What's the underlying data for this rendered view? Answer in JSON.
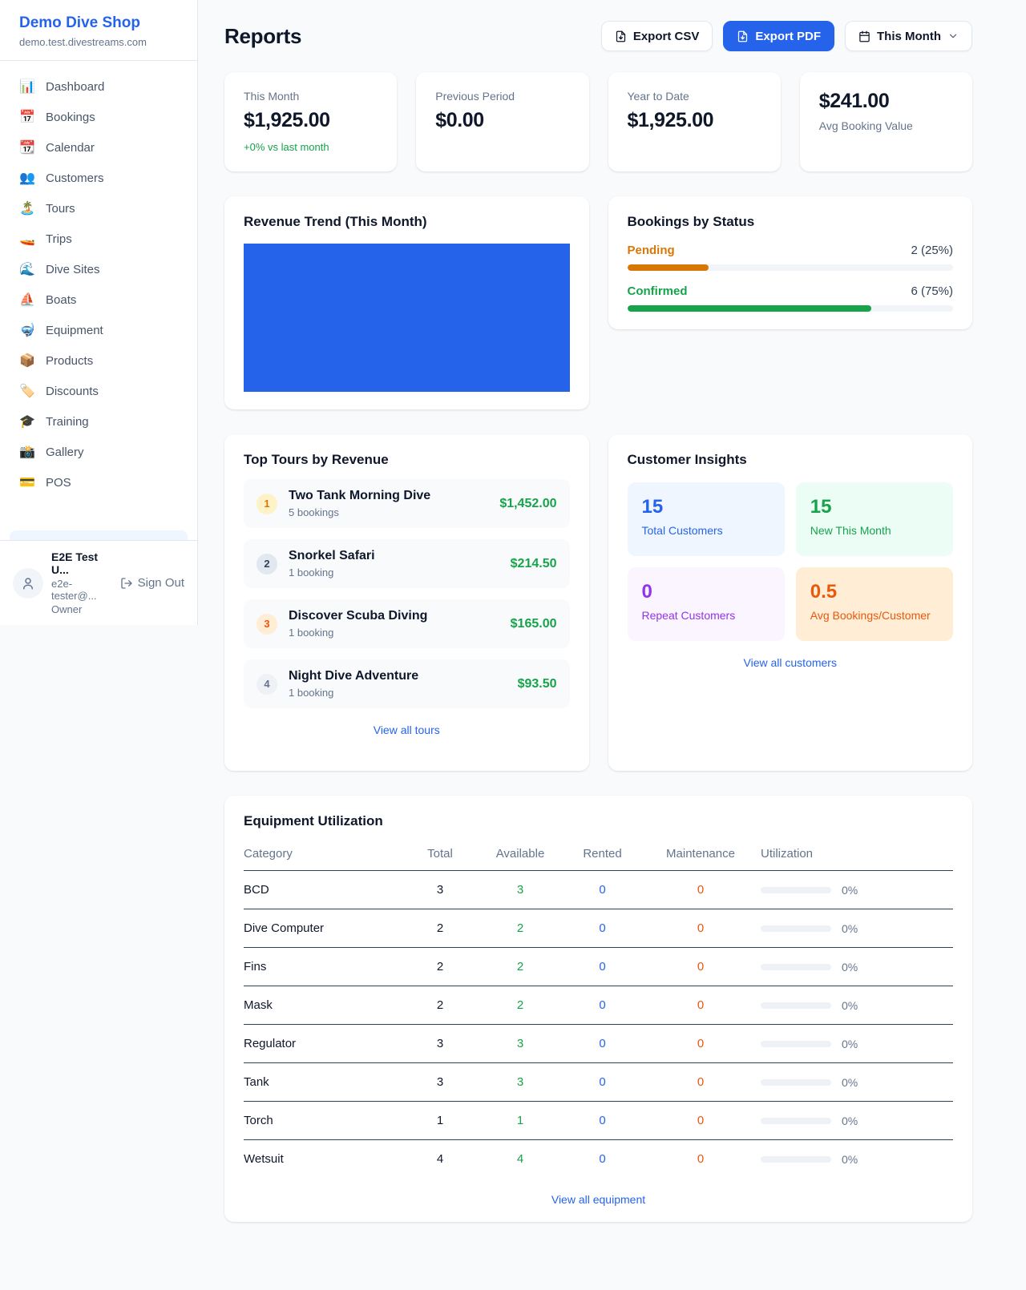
{
  "sidebar": {
    "shop_name": "Demo Dive Shop",
    "shop_domain": "demo.test.divestreams.com",
    "items": [
      {
        "label": "Dashboard",
        "icon": "📊",
        "icon_name": "dashboard-icon"
      },
      {
        "label": "Bookings",
        "icon": "📅",
        "icon_name": "bookings-calendar-icon"
      },
      {
        "label": "Calendar",
        "icon": "📆",
        "icon_name": "calendar-icon"
      },
      {
        "label": "Customers",
        "icon": "👥",
        "icon_name": "customers-icon"
      },
      {
        "label": "Tours",
        "icon": "🏝️",
        "icon_name": "island-icon"
      },
      {
        "label": "Trips",
        "icon": "🚤",
        "icon_name": "boat-trip-icon"
      },
      {
        "label": "Dive Sites",
        "icon": "🌊",
        "icon_name": "wave-icon"
      },
      {
        "label": "Boats",
        "icon": "⛵",
        "icon_name": "sailboat-icon"
      },
      {
        "label": "Equipment",
        "icon": "🤿",
        "icon_name": "dive-mask-icon"
      },
      {
        "label": "Products",
        "icon": "📦",
        "icon_name": "package-icon"
      },
      {
        "label": "Discounts",
        "icon": "🏷️",
        "icon_name": "tag-icon"
      },
      {
        "label": "Training",
        "icon": "🎓",
        "icon_name": "graduation-cap-icon"
      },
      {
        "label": "Gallery",
        "icon": "📸",
        "icon_name": "camera-icon"
      },
      {
        "label": "POS",
        "icon": "💳",
        "icon_name": "credit-card-icon"
      }
    ],
    "user": {
      "name": "E2E Test U...",
      "email": "e2e-tester@...",
      "role": "Owner",
      "sign_out_label": "Sign Out"
    }
  },
  "header": {
    "title": "Reports",
    "export_csv_label": "Export CSV",
    "export_pdf_label": "Export PDF",
    "period_label": "This Month"
  },
  "stats": [
    {
      "label": "This Month",
      "value": "$1,925.00",
      "delta": "+0% vs last month",
      "value_first": false
    },
    {
      "label": "Previous Period",
      "value": "$0.00",
      "delta": "",
      "value_first": false
    },
    {
      "label": "Year to Date",
      "value": "$1,925.00",
      "delta": "",
      "value_first": false
    },
    {
      "label": "Avg Booking Value",
      "value": "$241.00",
      "delta": "",
      "value_first": true
    }
  ],
  "revenue_trend": {
    "title": "Revenue Trend (This Month)",
    "bar_color": "#2563eb"
  },
  "bookings_by_status": {
    "title": "Bookings by Status",
    "statuses": [
      {
        "label": "Pending",
        "value_text": "2 (25%)",
        "percent": 25,
        "color": "#d97706"
      },
      {
        "label": "Confirmed",
        "value_text": "6 (75%)",
        "percent": 75,
        "color": "#16a34a"
      }
    ]
  },
  "top_tours": {
    "title": "Top Tours by Revenue",
    "view_all_label": "View all tours",
    "tours": [
      {
        "rank": "1",
        "name": "Two Tank Morning Dive",
        "bookings": "5 bookings",
        "revenue": "$1,452.00",
        "badge_color": "#d97706",
        "badge_bg": "#fef3c7"
      },
      {
        "rank": "2",
        "name": "Snorkel Safari",
        "bookings": "1 booking",
        "revenue": "$214.50",
        "badge_color": "#334155",
        "badge_bg": "#e2e8f0"
      },
      {
        "rank": "3",
        "name": "Discover Scuba Diving",
        "bookings": "1 booking",
        "revenue": "$165.00",
        "badge_color": "#ea580c",
        "badge_bg": "#ffedd5"
      },
      {
        "rank": "4",
        "name": "Night Dive Adventure",
        "bookings": "1 booking",
        "revenue": "$93.50",
        "badge_color": "#64748b",
        "badge_bg": "#eef2f6"
      }
    ]
  },
  "customer_insights": {
    "title": "Customer Insights",
    "view_all_label": "View all customers",
    "metrics": [
      {
        "value": "15",
        "label": "Total Customers",
        "color": "#2563eb",
        "bg": "#eff6ff"
      },
      {
        "value": "15",
        "label": "New This Month",
        "color": "#16a34a",
        "bg": "#ecfdf5"
      },
      {
        "value": "0",
        "label": "Repeat Customers",
        "color": "#9333ea",
        "bg": "#faf5ff"
      },
      {
        "value": "0.5",
        "label": "Avg Bookings/Customer",
        "color": "#ea580c",
        "bg": "#ffedd5"
      }
    ]
  },
  "equipment": {
    "title": "Equipment Utilization",
    "view_all_label": "View all equipment",
    "columns": [
      "Category",
      "Total",
      "Available",
      "Rented",
      "Maintenance",
      "Utilization"
    ],
    "rows": [
      {
        "category": "BCD",
        "total": "3",
        "available": "3",
        "rented": "0",
        "maintenance": "0",
        "utilization": "0%"
      },
      {
        "category": "Dive Computer",
        "total": "2",
        "available": "2",
        "rented": "0",
        "maintenance": "0",
        "utilization": "0%"
      },
      {
        "category": "Fins",
        "total": "2",
        "available": "2",
        "rented": "0",
        "maintenance": "0",
        "utilization": "0%"
      },
      {
        "category": "Mask",
        "total": "2",
        "available": "2",
        "rented": "0",
        "maintenance": "0",
        "utilization": "0%"
      },
      {
        "category": "Regulator",
        "total": "3",
        "available": "3",
        "rented": "0",
        "maintenance": "0",
        "utilization": "0%"
      },
      {
        "category": "Tank",
        "total": "3",
        "available": "3",
        "rented": "0",
        "maintenance": "0",
        "utilization": "0%"
      },
      {
        "category": "Torch",
        "total": "1",
        "available": "1",
        "rented": "0",
        "maintenance": "0",
        "utilization": "0%"
      },
      {
        "category": "Wetsuit",
        "total": "4",
        "available": "4",
        "rented": "0",
        "maintenance": "0",
        "utilization": "0%"
      }
    ]
  }
}
